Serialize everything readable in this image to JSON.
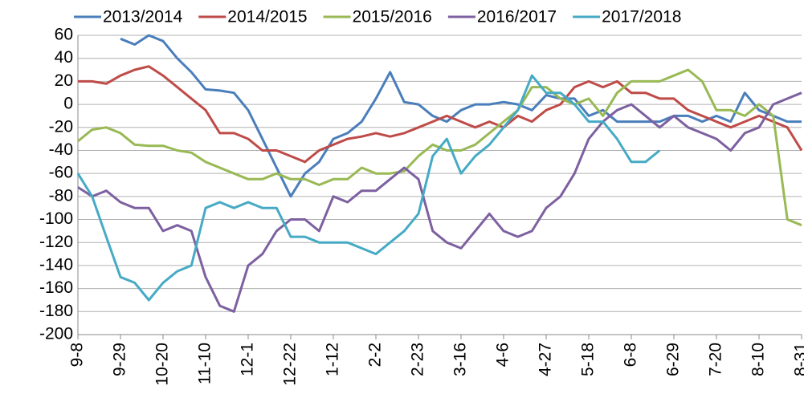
{
  "chart_data": {
    "type": "line",
    "categories": [
      "9-8",
      null,
      null,
      "9-29",
      null,
      null,
      "10-20",
      null,
      null,
      "11-10",
      null,
      null,
      "12-1",
      null,
      null,
      "12-22",
      null,
      null,
      "1-12",
      null,
      null,
      "2-2",
      null,
      null,
      "2-23",
      null,
      null,
      "3-16",
      null,
      null,
      "4-6",
      null,
      null,
      "4-27",
      null,
      null,
      "5-18",
      null,
      null,
      "6-8",
      null,
      null,
      "6-29",
      null,
      null,
      "7-20",
      null,
      null,
      "8-10",
      null,
      null,
      "8-31"
    ],
    "series": [
      {
        "name": "2013/2014",
        "color": "#4a7ebb",
        "values": [
          null,
          null,
          null,
          57,
          52,
          60,
          55,
          40,
          28,
          13,
          12,
          10,
          -5,
          -30,
          -55,
          -80,
          -60,
          -50,
          -30,
          -25,
          -15,
          5,
          28,
          2,
          0,
          -10,
          -15,
          -5,
          0,
          0,
          2,
          0,
          -5,
          8,
          5,
          5,
          -10,
          -5,
          -15,
          -15,
          -15,
          -15,
          -10,
          -10,
          -15,
          -10,
          -15,
          10,
          -5,
          -10,
          -15,
          -15
        ]
      },
      {
        "name": "2014/2015",
        "color": "#be4b48",
        "values": [
          20,
          20,
          18,
          25,
          30,
          33,
          25,
          15,
          5,
          -5,
          -25,
          -25,
          -30,
          -40,
          -40,
          -45,
          -50,
          -40,
          -35,
          -30,
          -28,
          -25,
          -28,
          -25,
          -20,
          -15,
          -10,
          -15,
          -20,
          -15,
          -20,
          -10,
          -15,
          -5,
          0,
          15,
          20,
          15,
          20,
          10,
          10,
          5,
          5,
          -5,
          -10,
          -15,
          -20,
          -15,
          -10,
          -15,
          -20,
          -40
        ]
      },
      {
        "name": "2015/2016",
        "color": "#98b954",
        "values": [
          -32,
          -22,
          -20,
          -25,
          -35,
          -36,
          -36,
          -40,
          -42,
          -50,
          -55,
          -60,
          -65,
          -65,
          -60,
          -65,
          -65,
          -70,
          -65,
          -65,
          -55,
          -60,
          -60,
          -58,
          -45,
          -35,
          -40,
          -40,
          -35,
          -25,
          -15,
          -5,
          15,
          15,
          5,
          0,
          5,
          -10,
          10,
          20,
          20,
          20,
          25,
          30,
          20,
          -5,
          -5,
          -10,
          0,
          -10,
          -100,
          -105
        ]
      },
      {
        "name": "2016/2017",
        "color": "#7d60a0",
        "values": [
          -72,
          -80,
          -75,
          -85,
          -90,
          -90,
          -110,
          -105,
          -110,
          -150,
          -175,
          -180,
          -140,
          -130,
          -110,
          -100,
          -100,
          -110,
          -80,
          -85,
          -75,
          -75,
          -65,
          -55,
          -65,
          -110,
          -120,
          -125,
          -110,
          -95,
          -110,
          -115,
          -110,
          -90,
          -80,
          -60,
          -30,
          -15,
          -5,
          0,
          -10,
          -20,
          -10,
          -20,
          -25,
          -30,
          -40,
          -25,
          -20,
          0,
          5,
          10
        ]
      },
      {
        "name": "2017/2018",
        "color": "#46aac5",
        "values": [
          -60,
          -80,
          -115,
          -150,
          -155,
          -170,
          -155,
          -145,
          -140,
          -90,
          -85,
          -90,
          -85,
          -90,
          -90,
          -115,
          -115,
          -120,
          -120,
          -120,
          -125,
          -130,
          -120,
          -110,
          -95,
          -45,
          -30,
          -60,
          -45,
          -35,
          -20,
          -5,
          25,
          10,
          10,
          0,
          -15,
          -15,
          -30,
          -50,
          -50,
          -40,
          null,
          null,
          null,
          null,
          null,
          null,
          null,
          null,
          null,
          null
        ]
      }
    ],
    "ylim": [
      -200,
      60
    ],
    "yticks": [
      -200,
      -180,
      -160,
      -140,
      -120,
      -100,
      -80,
      -60,
      -40,
      -20,
      0,
      20,
      40,
      60
    ],
    "grid": true,
    "legend": "top"
  }
}
